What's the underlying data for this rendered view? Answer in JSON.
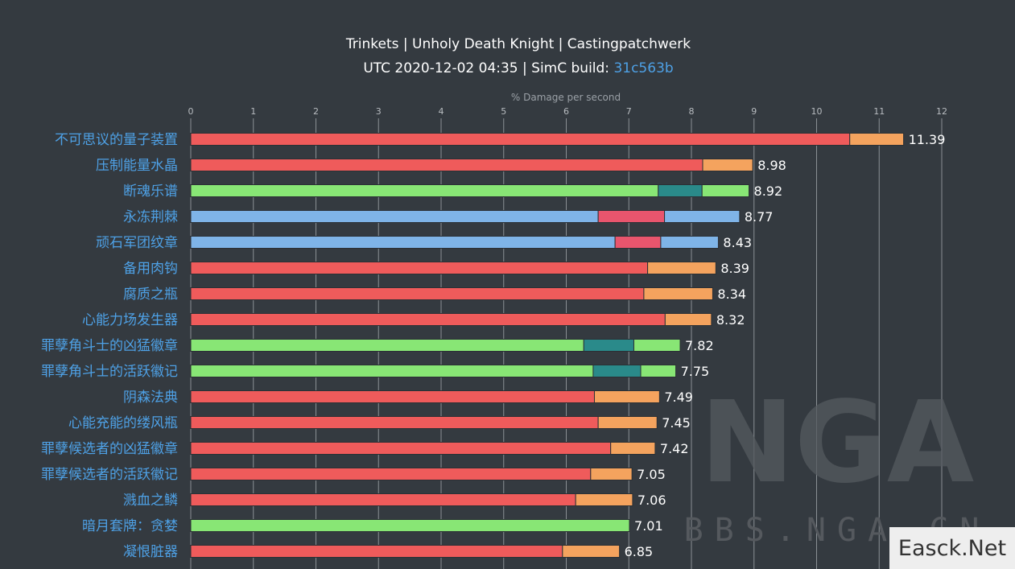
{
  "title": "Trinkets | Unholy Death Knight | Castingpatchwerk",
  "subtitle": {
    "prefix": "UTC 2020-12-02 04:35 | SimC build: ",
    "build": "31c563b"
  },
  "watermark": {
    "logo_text": "NGA",
    "url_text": "BBS.NGA.CN"
  },
  "corner_badge": "Easck.Net",
  "colors": {
    "background": "#343a40",
    "red": "#ef5b5b",
    "orange": "#f4a35e",
    "green": "#88e675",
    "teal": "#2a8a8a",
    "blue": "#7fb4e8",
    "pink": "#e8556d",
    "label_blue": "#4ea1e6"
  },
  "chart_data": {
    "type": "bar",
    "orientation": "horizontal",
    "stacked": true,
    "xlabel": "% Damage per second",
    "xlim": [
      0,
      12
    ],
    "xticks": [
      0,
      1,
      2,
      3,
      4,
      5,
      6,
      7,
      8,
      9,
      10,
      11,
      12
    ],
    "grid": true,
    "categories": [
      "不可思议的量子装置",
      "压制能量水晶",
      "断魂乐谱",
      "永冻荆棘",
      "顽石军团纹章",
      "备用肉钩",
      "腐质之瓶",
      "心能力场发生器",
      "罪孽角斗士的凶猛徽章",
      "罪孽角斗士的活跃徽记",
      "阴森法典",
      "心能充能的缕风瓶",
      "罪孽候选者的凶猛徽章",
      "罪孽候选者的活跃徽记",
      "溅血之鳞",
      "暗月套牌：贪婪",
      "凝恨脏器"
    ],
    "totals": [
      "11.39",
      "8.98",
      "8.92",
      "8.77",
      "8.43",
      "8.39",
      "8.34",
      "8.32",
      "7.82",
      "7.75",
      "7.49",
      "7.45",
      "7.42",
      "7.05",
      "7.06",
      "7.01",
      "6.85"
    ],
    "bars": [
      {
        "segments": [
          {
            "value": 10.53,
            "color": "red"
          },
          {
            "value": 0.86,
            "color": "orange"
          }
        ]
      },
      {
        "segments": [
          {
            "value": 8.18,
            "color": "red"
          },
          {
            "value": 0.8,
            "color": "orange"
          }
        ]
      },
      {
        "segments": [
          {
            "value": 7.47,
            "color": "green"
          },
          {
            "value": 0.7,
            "color": "teal"
          },
          {
            "value": 0.75,
            "color": "green"
          }
        ]
      },
      {
        "segments": [
          {
            "value": 6.51,
            "color": "blue"
          },
          {
            "value": 1.06,
            "color": "pink"
          },
          {
            "value": 1.2,
            "color": "blue"
          }
        ]
      },
      {
        "segments": [
          {
            "value": 6.78,
            "color": "blue"
          },
          {
            "value": 0.73,
            "color": "pink"
          },
          {
            "value": 0.92,
            "color": "blue"
          }
        ]
      },
      {
        "segments": [
          {
            "value": 7.3,
            "color": "red"
          },
          {
            "value": 1.09,
            "color": "orange"
          }
        ]
      },
      {
        "segments": [
          {
            "value": 7.24,
            "color": "red"
          },
          {
            "value": 1.1,
            "color": "orange"
          }
        ]
      },
      {
        "segments": [
          {
            "value": 7.58,
            "color": "red"
          },
          {
            "value": 0.74,
            "color": "orange"
          }
        ]
      },
      {
        "segments": [
          {
            "value": 6.28,
            "color": "green"
          },
          {
            "value": 0.8,
            "color": "teal"
          },
          {
            "value": 0.74,
            "color": "green"
          }
        ]
      },
      {
        "segments": [
          {
            "value": 6.43,
            "color": "green"
          },
          {
            "value": 0.76,
            "color": "teal"
          },
          {
            "value": 0.56,
            "color": "green"
          }
        ]
      },
      {
        "segments": [
          {
            "value": 6.45,
            "color": "red"
          },
          {
            "value": 1.04,
            "color": "orange"
          }
        ]
      },
      {
        "segments": [
          {
            "value": 6.51,
            "color": "red"
          },
          {
            "value": 0.94,
            "color": "orange"
          }
        ]
      },
      {
        "segments": [
          {
            "value": 6.71,
            "color": "red"
          },
          {
            "value": 0.71,
            "color": "orange"
          }
        ]
      },
      {
        "segments": [
          {
            "value": 6.39,
            "color": "red"
          },
          {
            "value": 0.66,
            "color": "orange"
          }
        ]
      },
      {
        "segments": [
          {
            "value": 6.15,
            "color": "red"
          },
          {
            "value": 0.91,
            "color": "orange"
          }
        ]
      },
      {
        "segments": [
          {
            "value": 7.01,
            "color": "green"
          }
        ]
      },
      {
        "segments": [
          {
            "value": 5.94,
            "color": "red"
          },
          {
            "value": 0.91,
            "color": "orange"
          }
        ]
      }
    ]
  }
}
